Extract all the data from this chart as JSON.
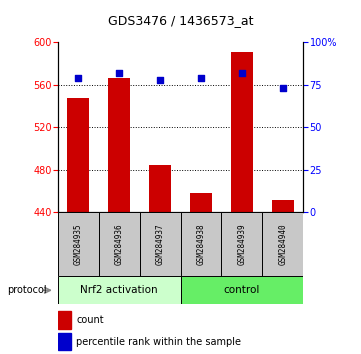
{
  "title": "GDS3476 / 1436573_at",
  "samples": [
    "GSM284935",
    "GSM284936",
    "GSM284937",
    "GSM284938",
    "GSM284939",
    "GSM284940"
  ],
  "counts": [
    548,
    567,
    485,
    458,
    591,
    452
  ],
  "percentiles": [
    79,
    82,
    78,
    79,
    82,
    73
  ],
  "ylim_left": [
    440,
    600
  ],
  "ylim_right": [
    0,
    100
  ],
  "yticks_left": [
    440,
    480,
    520,
    560,
    600
  ],
  "yticks_right": [
    0,
    25,
    50,
    75,
    100
  ],
  "ytick_labels_right": [
    "0",
    "25",
    "50",
    "75",
    "100%"
  ],
  "bar_color": "#cc0000",
  "dot_color": "#0000cc",
  "group1_label": "Nrf2 activation",
  "group2_label": "control",
  "group1_color": "#ccffcc",
  "group2_color": "#66ee66",
  "group1_samples": [
    0,
    1,
    2
  ],
  "group2_samples": [
    3,
    4,
    5
  ],
  "protocol_label": "protocol",
  "legend_count_label": "count",
  "legend_pct_label": "percentile rank within the sample",
  "grid_yticks": [
    480,
    520,
    560
  ]
}
